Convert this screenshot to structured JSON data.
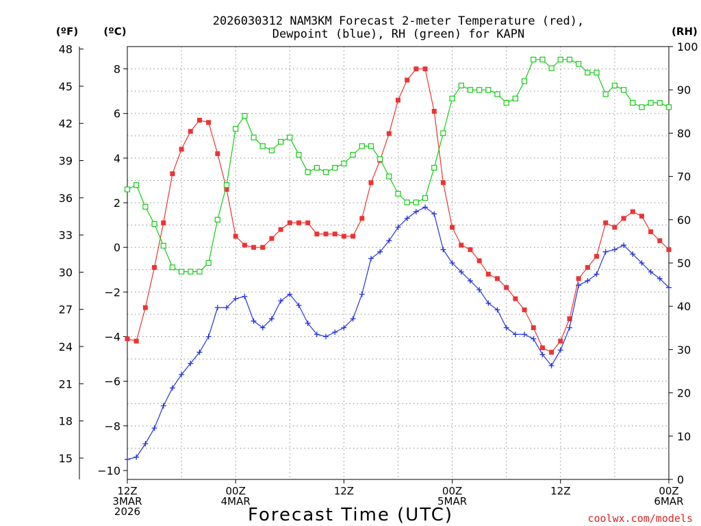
{
  "chart_data": {
    "type": "line",
    "title_line1": "2026030312 NAM3KM Forecast 2-meter Temperature (red),",
    "title_line2": "Dewpoint (blue), RH (green) for KAPN",
    "xlabel": "Forecast Time (UTC)",
    "left_outer_unit": "(ºF)",
    "left_inner_unit": "(ºC)",
    "right_unit": "(RH)",
    "credit": "coolwx.com/models",
    "x_hours_range": [
      0,
      60
    ],
    "ylim_c": [
      -10.4,
      9.0
    ],
    "ylim_rh": [
      0,
      100
    ],
    "x_ticks": [
      {
        "hour": 0,
        "line1": "12Z",
        "line2": "3MAR",
        "line3": "2026"
      },
      {
        "hour": 12,
        "line1": "00Z",
        "line2": "4MAR",
        "line3": ""
      },
      {
        "hour": 24,
        "line1": "12Z",
        "line2": "",
        "line3": ""
      },
      {
        "hour": 36,
        "line1": "00Z",
        "line2": "5MAR",
        "line3": ""
      },
      {
        "hour": 48,
        "line1": "12Z",
        "line2": "",
        "line3": ""
      },
      {
        "hour": 60,
        "line1": "00Z",
        "line2": "6MAR",
        "line3": ""
      }
    ],
    "celsius_ticks": [
      "8",
      "6",
      "4",
      "2",
      "0",
      "−2",
      "−4",
      "−6",
      "−8",
      "−10"
    ],
    "fahrenheit_ticks": [
      "48",
      "45",
      "42",
      "39",
      "36",
      "33",
      "30",
      "27",
      "24",
      "21",
      "18",
      "15"
    ],
    "rh_ticks": [
      "100",
      "90",
      "80",
      "70",
      "60",
      "50",
      "40",
      "30",
      "20",
      "10",
      "0"
    ],
    "series": [
      {
        "name": "2-meter Temperature (°C)",
        "color": "#ee3333",
        "marker": "filled-square",
        "axis": "celsius",
        "values": [
          -4.1,
          -4.2,
          -2.7,
          -0.9,
          1.1,
          3.3,
          4.4,
          5.2,
          5.7,
          5.6,
          4.2,
          2.6,
          0.5,
          0.1,
          0.0,
          0.0,
          0.4,
          0.8,
          1.1,
          1.1,
          1.1,
          0.6,
          0.6,
          0.6,
          0.5,
          0.5,
          1.3,
          2.9,
          3.9,
          5.1,
          6.6,
          7.5,
          8.0,
          8.0,
          6.1,
          2.9,
          0.9,
          0.1,
          -0.1,
          -0.6,
          -1.2,
          -1.4,
          -1.8,
          -2.3,
          -2.8,
          -3.6,
          -4.5,
          -4.7,
          -4.2,
          -3.2,
          -1.4,
          -0.9,
          -0.4,
          1.1,
          0.9,
          1.3,
          1.6,
          1.4,
          0.7,
          0.3,
          -0.1
        ]
      },
      {
        "name": "Dewpoint (°C)",
        "color": "#2233dd",
        "marker": "plus",
        "axis": "celsius",
        "values": [
          -9.5,
          -9.4,
          -8.8,
          -8.1,
          -7.1,
          -6.3,
          -5.7,
          -5.2,
          -4.7,
          -4.0,
          -2.7,
          -2.7,
          -2.3,
          -2.2,
          -3.3,
          -3.6,
          -3.2,
          -2.4,
          -2.1,
          -2.6,
          -3.4,
          -3.9,
          -4.0,
          -3.8,
          -3.6,
          -3.2,
          -2.1,
          -0.5,
          -0.2,
          0.3,
          0.9,
          1.3,
          1.6,
          1.8,
          1.5,
          -0.1,
          -0.7,
          -1.1,
          -1.5,
          -1.9,
          -2.5,
          -2.8,
          -3.6,
          -3.9,
          -3.9,
          -4.1,
          -4.8,
          -5.3,
          -4.6,
          -3.6,
          -1.7,
          -1.5,
          -1.2,
          -0.2,
          -0.1,
          0.1,
          -0.3,
          -0.7,
          -1.1,
          -1.4,
          -1.8
        ]
      },
      {
        "name": "RH (%)",
        "color": "#11cc11",
        "marker": "open-square",
        "axis": "rh",
        "values": [
          67,
          68,
          63,
          59,
          54,
          49,
          48,
          48,
          48,
          50,
          60,
          68,
          81,
          84,
          79,
          77,
          76,
          78,
          79,
          75,
          71,
          72,
          71,
          72,
          73,
          75,
          77,
          77,
          74,
          70,
          66,
          64,
          64,
          65,
          72,
          80,
          88,
          91,
          90,
          90,
          90,
          89,
          87,
          88,
          92,
          97,
          97,
          95,
          97,
          97,
          96,
          94,
          94,
          89,
          91,
          90,
          87,
          86,
          87,
          87,
          86
        ]
      }
    ]
  }
}
